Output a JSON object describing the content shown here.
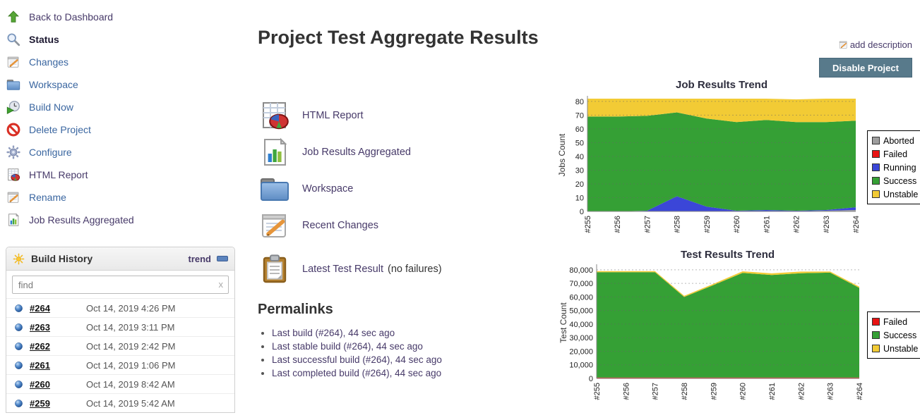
{
  "page": {
    "title": "Project Test Aggregate Results"
  },
  "actions": {
    "add_description": "add description",
    "add_description_icon": "notepad-pencil-icon",
    "disable_project": "Disable Project"
  },
  "sidebar": {
    "items": [
      {
        "label": "Back to Dashboard",
        "icon": "arrow-up-icon"
      },
      {
        "label": "Status",
        "icon": "magnifier-icon"
      },
      {
        "label": "Changes",
        "icon": "notepad-pencil-icon"
      },
      {
        "label": "Workspace",
        "icon": "folder-icon"
      },
      {
        "label": "Build Now",
        "icon": "clock-play-icon"
      },
      {
        "label": "Delete Project",
        "icon": "no-entry-icon"
      },
      {
        "label": "Configure",
        "icon": "gear-icon"
      },
      {
        "label": "HTML Report",
        "icon": "sheet-pie-icon"
      },
      {
        "label": "Rename",
        "icon": "notepad-pencil-icon"
      },
      {
        "label": "Job Results Aggregated",
        "icon": "doc-bars-icon"
      }
    ]
  },
  "build_history": {
    "title": "Build History",
    "header_icon": "sun-icon",
    "trend_label": "trend",
    "collapse_icon": "collapse-pill-icon",
    "find_placeholder": "find",
    "clear_label": "x",
    "builds": [
      {
        "id": "#264",
        "date": "Oct 14, 2019 4:26 PM",
        "ball": "blue"
      },
      {
        "id": "#263",
        "date": "Oct 14, 2019 3:11 PM",
        "ball": "blue"
      },
      {
        "id": "#262",
        "date": "Oct 14, 2019 2:42 PM",
        "ball": "blue"
      },
      {
        "id": "#261",
        "date": "Oct 14, 2019 1:06 PM",
        "ball": "blue"
      },
      {
        "id": "#260",
        "date": "Oct 14, 2019 8:42 AM",
        "ball": "blue"
      },
      {
        "id": "#259",
        "date": "Oct 14, 2019 5:42 AM",
        "ball": "blue"
      }
    ]
  },
  "content": {
    "links": [
      {
        "label": "HTML Report",
        "icon": "sheet-pie-icon"
      },
      {
        "label": "Job Results Aggregated",
        "icon": "doc-bars-icon"
      },
      {
        "label": "Workspace",
        "icon": "folder-icon"
      },
      {
        "label": "Recent Changes",
        "icon": "notepad-pencil-icon"
      },
      {
        "label": "Latest Test Result",
        "icon": "clipboard-icon",
        "suffix": "(no failures)"
      }
    ],
    "permalinks_title": "Permalinks",
    "permalinks": [
      "Last build (#264), 44 sec ago",
      "Last stable build (#264), 44 sec ago",
      "Last successful build (#264), 44 sec ago",
      "Last completed build (#264), 44 sec ago"
    ]
  },
  "colors": {
    "accent_button": "#587a8b",
    "link_blue": "#3a66a0",
    "link_purple": "#473a69",
    "chart_green": "#35a035",
    "chart_yellow": "#f2cb35",
    "chart_blue": "#3b46d8",
    "chart_red": "#e81313",
    "chart_gray": "#9e9e9e"
  },
  "chart_data": [
    {
      "type": "area",
      "stacked": true,
      "title": "Job Results Trend",
      "ylabel": "Jobs Count",
      "xlabel": "",
      "grid": true,
      "legend_position": "right",
      "ylim": [
        0,
        82
      ],
      "yticks": [
        0,
        10,
        20,
        30,
        40,
        50,
        60,
        70,
        80
      ],
      "ytick_comma": false,
      "categories": [
        "#255",
        "#256",
        "#257",
        "#258",
        "#259",
        "#260",
        "#261",
        "#262",
        "#263",
        "#264"
      ],
      "series": [
        {
          "name": "Aborted",
          "color": "#9e9e9e",
          "values": [
            0,
            0,
            0,
            0,
            0,
            0,
            0,
            0,
            0.5,
            1
          ]
        },
        {
          "name": "Failed",
          "color": "#e81313",
          "values": [
            0,
            0,
            0,
            0,
            0,
            0,
            0,
            0,
            0,
            0
          ]
        },
        {
          "name": "Running",
          "color": "#3b46d8",
          "values": [
            0,
            0,
            0.5,
            11,
            3.5,
            0.5,
            1,
            0.5,
            0.5,
            2
          ]
        },
        {
          "name": "Success",
          "color": "#35a035",
          "values": [
            69,
            69,
            69,
            61,
            64,
            64.5,
            65.5,
            64.5,
            64,
            63
          ]
        },
        {
          "name": "Unstable",
          "color": "#f2cb35",
          "values": [
            13,
            13,
            12.5,
            10,
            14.5,
            17,
            15.5,
            16.5,
            17,
            16
          ]
        }
      ]
    },
    {
      "type": "area",
      "stacked": true,
      "title": "Test Results Trend",
      "ylabel": "Test Count",
      "xlabel": "",
      "grid": true,
      "legend_position": "right",
      "ylim": [
        0,
        82000
      ],
      "yticks": [
        0,
        10000,
        20000,
        30000,
        40000,
        50000,
        60000,
        70000,
        80000
      ],
      "ytick_comma": true,
      "categories": [
        "#255",
        "#256",
        "#257",
        "#258",
        "#259",
        "#260",
        "#261",
        "#262",
        "#263",
        "#264"
      ],
      "series": [
        {
          "name": "Failed",
          "color": "#e81313",
          "values": [
            700,
            700,
            700,
            700,
            700,
            700,
            700,
            700,
            700,
            700
          ]
        },
        {
          "name": "Success",
          "color": "#35a035",
          "values": [
            77500,
            77500,
            77500,
            59300,
            68000,
            77000,
            75500,
            76800,
            77200,
            66000
          ]
        },
        {
          "name": "Unstable",
          "color": "#f2cb35",
          "values": [
            800,
            800,
            800,
            900,
            900,
            1200,
            1200,
            1200,
            900,
            900
          ]
        }
      ]
    }
  ]
}
